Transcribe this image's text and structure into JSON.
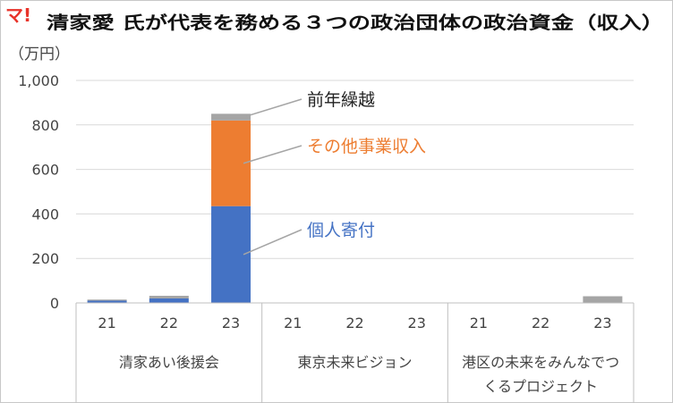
{
  "logo_text": "マ!",
  "chart_data": {
    "type": "bar",
    "stacked": true,
    "title": "清家愛 氏が代表を務める３つの政治団体の政治資金（収入）",
    "unit_label": "（万円）",
    "ylim": [
      0,
      1000
    ],
    "yticks": [
      0,
      200,
      400,
      600,
      800,
      1000
    ],
    "ytick_labels": [
      "0",
      "200",
      "400",
      "600",
      "800",
      "1,000"
    ],
    "grid": true,
    "legend": "data-callouts",
    "groups": [
      {
        "label_lines": [
          "清家あい後援会"
        ],
        "years": [
          "21",
          "22",
          "23"
        ]
      },
      {
        "label_lines": [
          "東京未来ビジョン"
        ],
        "years": [
          "21",
          "22",
          "23"
        ]
      },
      {
        "label_lines": [
          "港区の未来をみんなでつ",
          "くるプロジェクト"
        ],
        "years": [
          "21",
          "22",
          "23"
        ]
      }
    ],
    "series": [
      {
        "name": "個人寄付",
        "color": "#4472c4",
        "label_color": "#4472c4",
        "values": [
          10,
          20,
          435,
          0,
          0,
          0,
          0,
          0,
          0
        ]
      },
      {
        "name": "その他事業収入",
        "color": "#ed7d31",
        "label_color": "#ed7d31",
        "values": [
          0,
          0,
          385,
          0,
          0,
          0,
          0,
          0,
          0
        ]
      },
      {
        "name": "前年繰越",
        "color": "#a5a5a5",
        "label_color": "#222222",
        "values": [
          5,
          12,
          30,
          0,
          0,
          0,
          0,
          0,
          30
        ]
      }
    ]
  }
}
